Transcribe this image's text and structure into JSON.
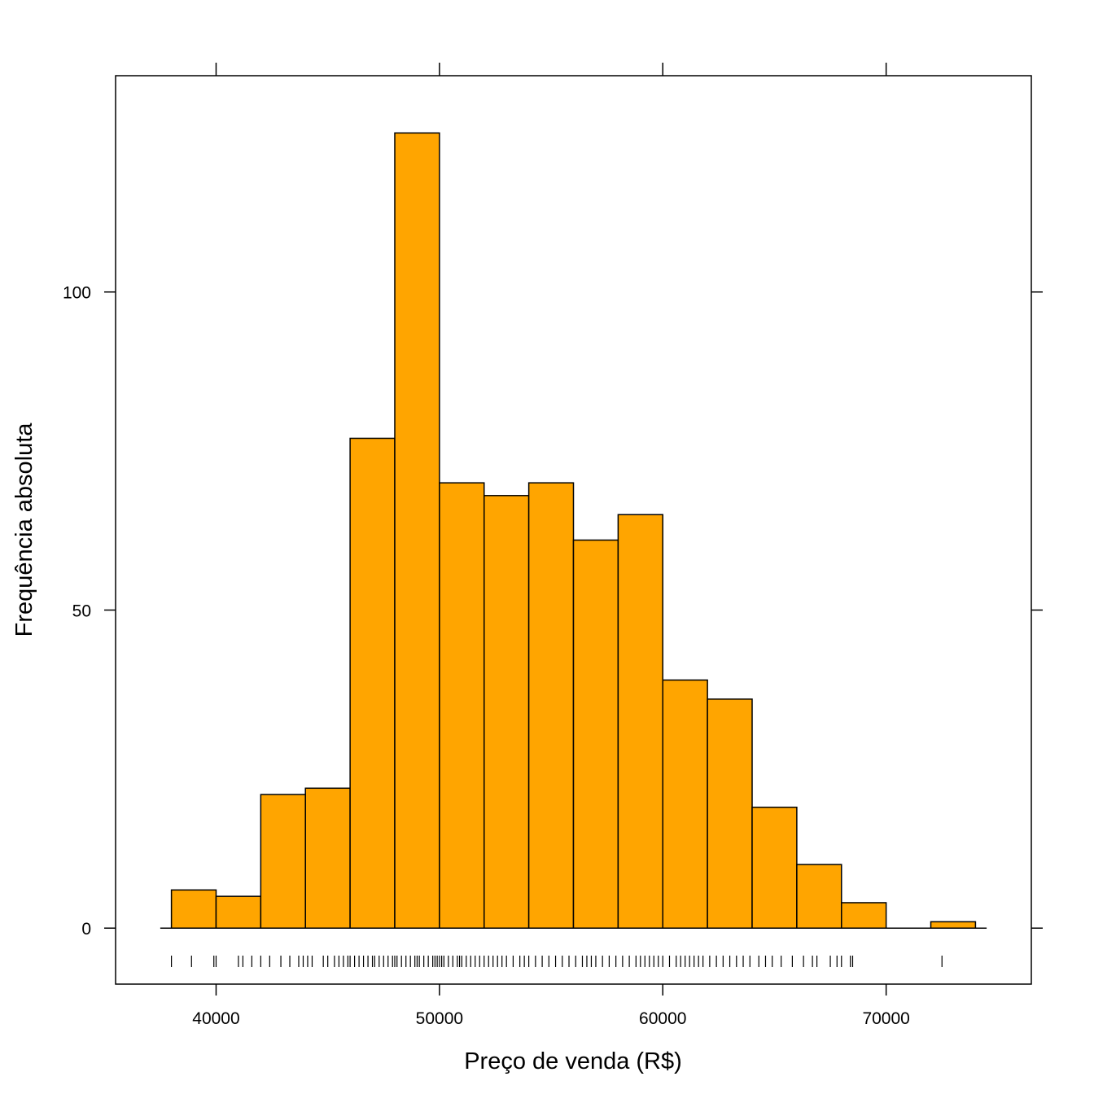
{
  "chart_data": {
    "type": "bar",
    "variant": "histogram",
    "title": "",
    "xlabel": "Preço de venda (R$)",
    "ylabel": "Frequência absoluta",
    "xlim": [
      35500,
      76500
    ],
    "ylim": [
      -8.8,
      134
    ],
    "grid": false,
    "bar_color": "#FFA500",
    "x_ticks": [
      40000,
      50000,
      60000,
      70000
    ],
    "x_tick_labels": [
      "40000",
      "50000",
      "60000",
      "70000"
    ],
    "y_ticks": [
      0,
      50,
      100
    ],
    "y_tick_labels": [
      "0",
      "50",
      "100"
    ],
    "bins": [
      {
        "x0": 38000,
        "x1": 40000,
        "count": 6
      },
      {
        "x0": 40000,
        "x1": 42000,
        "count": 5
      },
      {
        "x0": 42000,
        "x1": 44000,
        "count": 21
      },
      {
        "x0": 44000,
        "x1": 46000,
        "count": 22
      },
      {
        "x0": 46000,
        "x1": 48000,
        "count": 77
      },
      {
        "x0": 48000,
        "x1": 50000,
        "count": 125
      },
      {
        "x0": 50000,
        "x1": 52000,
        "count": 70
      },
      {
        "x0": 52000,
        "x1": 54000,
        "count": 68
      },
      {
        "x0": 54000,
        "x1": 56000,
        "count": 70
      },
      {
        "x0": 56000,
        "x1": 58000,
        "count": 61
      },
      {
        "x0": 58000,
        "x1": 60000,
        "count": 65
      },
      {
        "x0": 60000,
        "x1": 62000,
        "count": 39
      },
      {
        "x0": 62000,
        "x1": 64000,
        "count": 36
      },
      {
        "x0": 64000,
        "x1": 66000,
        "count": 19
      },
      {
        "x0": 66000,
        "x1": 68000,
        "count": 10
      },
      {
        "x0": 68000,
        "x1": 70000,
        "count": 4
      },
      {
        "x0": 70000,
        "x1": 72000,
        "count": 0
      },
      {
        "x0": 72000,
        "x1": 74000,
        "count": 1
      }
    ],
    "baseline_range": [
      37500,
      74500
    ],
    "rug": [
      38000,
      38900,
      39900,
      40000,
      41000,
      41200,
      41600,
      42000,
      42400,
      42900,
      43300,
      43700,
      43900,
      44100,
      44300,
      44800,
      45000,
      45300,
      45500,
      45700,
      45900,
      46000,
      46200,
      46400,
      46600,
      46800,
      47000,
      47100,
      47300,
      47500,
      47700,
      47900,
      48000,
      48100,
      48300,
      48500,
      48700,
      48900,
      49000,
      49100,
      49300,
      49500,
      49700,
      49800,
      49900,
      50000,
      50100,
      50200,
      50400,
      50600,
      50800,
      50900,
      51000,
      51200,
      51400,
      51600,
      51800,
      52000,
      52200,
      52400,
      52600,
      52800,
      53000,
      53300,
      53600,
      53800,
      54000,
      54300,
      54600,
      54900,
      55200,
      55500,
      55800,
      56100,
      56400,
      56600,
      56800,
      57000,
      57300,
      57600,
      57900,
      58200,
      58500,
      58800,
      59000,
      59200,
      59400,
      59600,
      59800,
      60000,
      60300,
      60600,
      60800,
      61000,
      61200,
      61400,
      61600,
      61800,
      62100,
      62400,
      62700,
      63000,
      63300,
      63600,
      63900,
      64300,
      64600,
      64900,
      65300,
      65800,
      66300,
      66700,
      66900,
      67500,
      67800,
      68000,
      68400,
      68500,
      72500
    ]
  }
}
